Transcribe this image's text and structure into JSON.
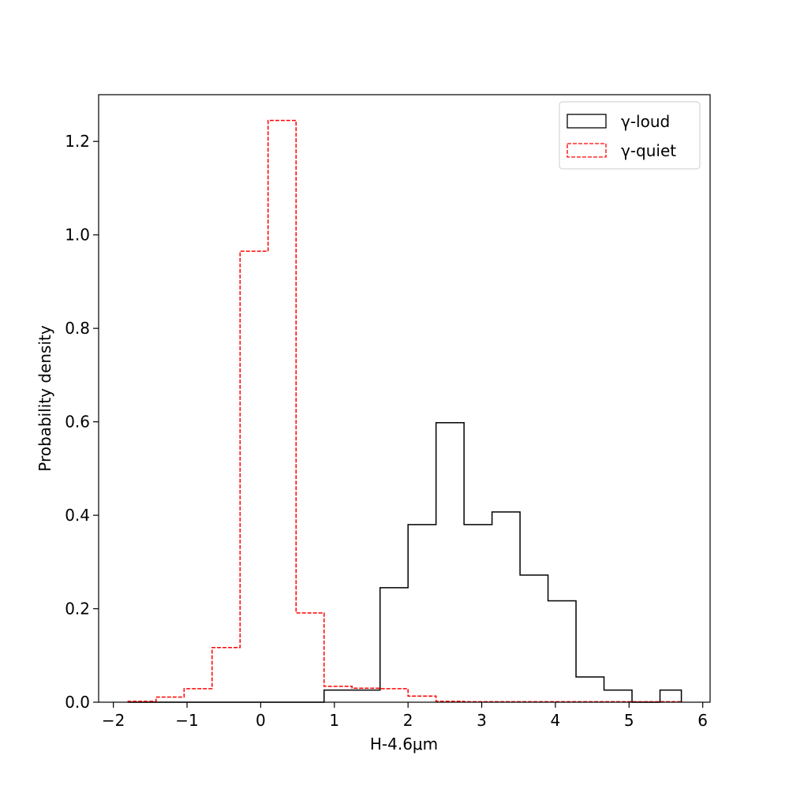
{
  "chart_data": {
    "type": "histogram",
    "xlabel": "H-4.6μm",
    "ylabel": "Probability  density",
    "xlim": [
      -2.2,
      6.1
    ],
    "ylim": [
      0,
      1.3
    ],
    "xticks": [
      -2,
      -1,
      0,
      1,
      2,
      3,
      4,
      5,
      6
    ],
    "yticks": [
      0.0,
      0.2,
      0.4,
      0.6,
      0.8,
      1.0,
      1.2
    ],
    "xtick_labels": [
      "−2",
      "−1",
      "0",
      "1",
      "2",
      "3",
      "4",
      "5",
      "6"
    ],
    "ytick_labels": [
      "0.0",
      "0.2",
      "0.4",
      "0.6",
      "0.8",
      "1.0",
      "1.2"
    ],
    "bin_edges": [
      -1.8,
      -1.42,
      -1.04,
      -0.66,
      -0.28,
      0.1,
      0.48,
      0.86,
      1.24,
      1.62,
      2.0,
      2.38,
      2.76,
      3.14,
      3.52,
      3.9,
      4.28,
      4.66,
      5.04,
      5.42,
      5.8
    ],
    "legend_position": "top-right",
    "series": [
      {
        "name": "γ-loud",
        "color": "#000000",
        "linestyle": "solid",
        "x_start": -1.8,
        "x_end": 5.71,
        "values": [
          0,
          0,
          0,
          0,
          0,
          0,
          0,
          0.026,
          0.026,
          0.245,
          0.38,
          0.598,
          0.38,
          0.407,
          0.272,
          0.217,
          0.054,
          0.026,
          0,
          0.026
        ]
      },
      {
        "name": "γ-quiet",
        "color": "#ff0000",
        "linestyle": "dashed",
        "x_start": -1.8,
        "x_end": 5.71,
        "values": [
          0.002,
          0.011,
          0.029,
          0.117,
          0.965,
          1.245,
          0.191,
          0.034,
          0.03,
          0.029,
          0.013,
          0.002,
          0.001,
          0.001,
          0.001,
          0.001,
          0.001,
          0.001,
          0.001,
          0.001
        ]
      }
    ]
  }
}
